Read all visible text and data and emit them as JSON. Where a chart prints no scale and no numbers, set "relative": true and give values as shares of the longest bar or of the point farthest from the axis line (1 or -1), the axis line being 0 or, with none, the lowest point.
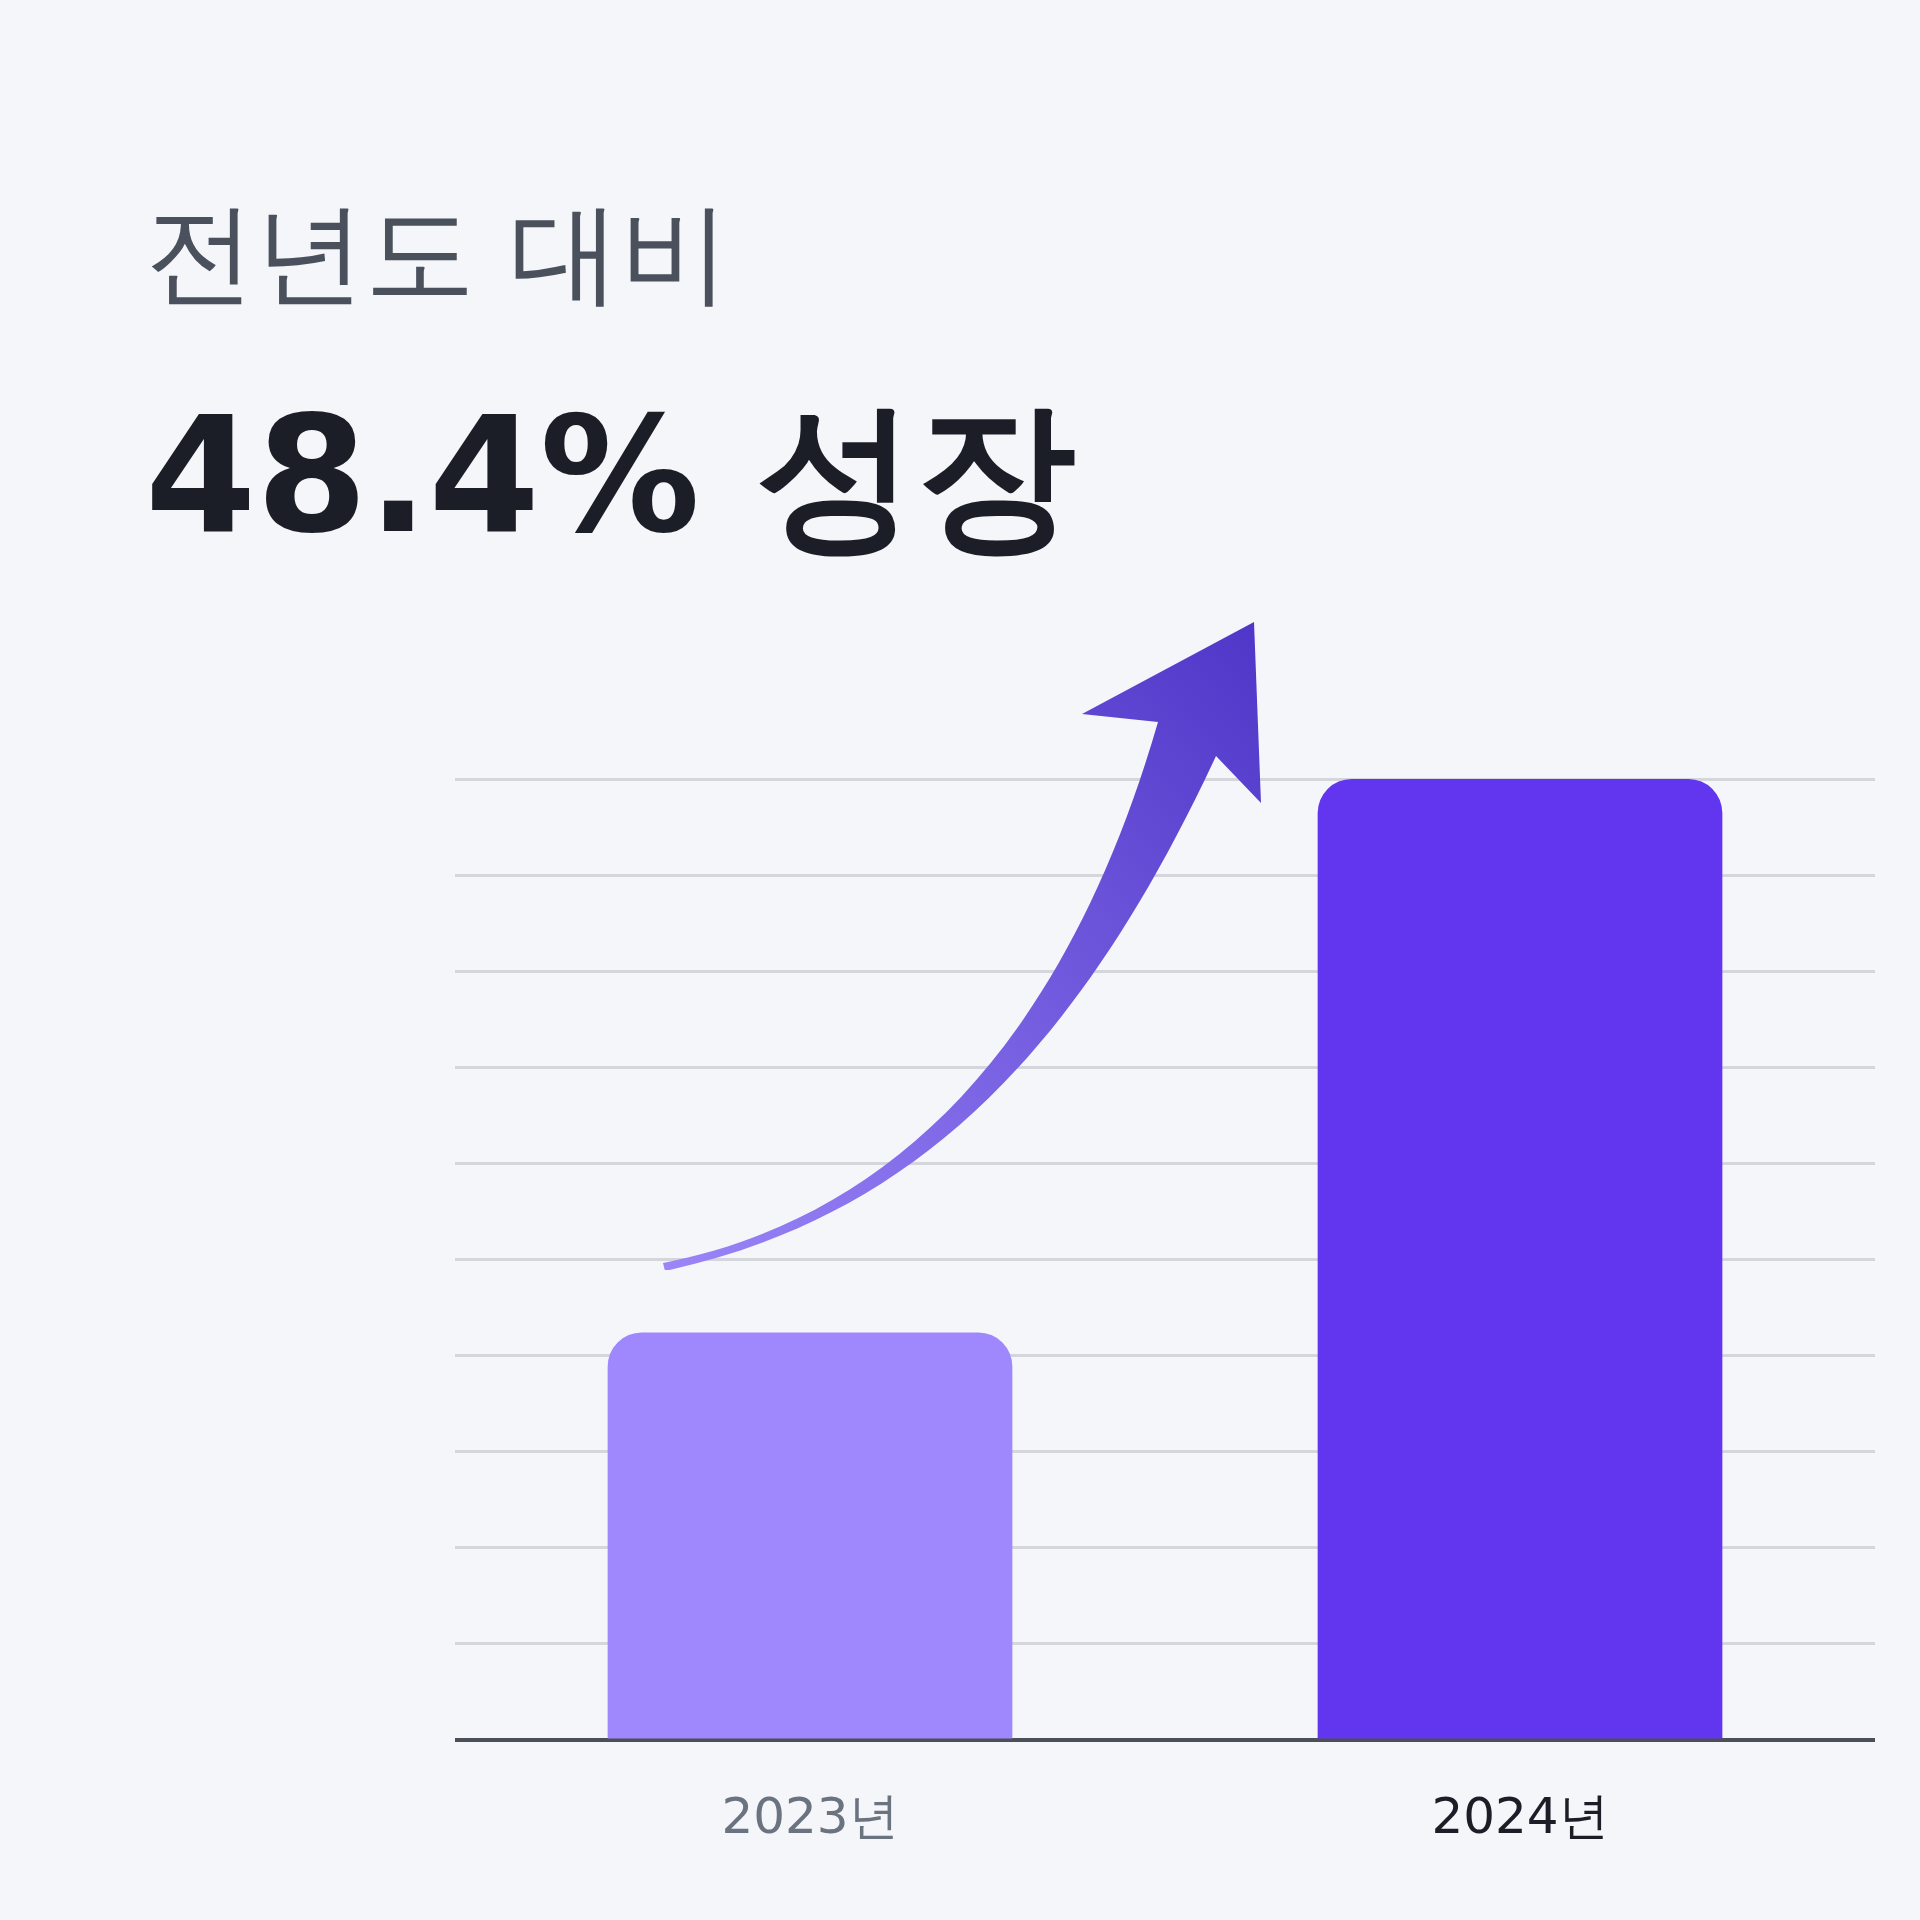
{
  "chart_data": {
    "type": "bar",
    "title": "전년도 대비",
    "subtitle": "48.4% 성장",
    "categories": [
      "2023년",
      "2024년"
    ],
    "values": [
      0.424,
      1
    ],
    "colors": [
      "#9f88fd",
      "#6236ee"
    ],
    "relative": true,
    "grid": "y",
    "legend": false
  }
}
